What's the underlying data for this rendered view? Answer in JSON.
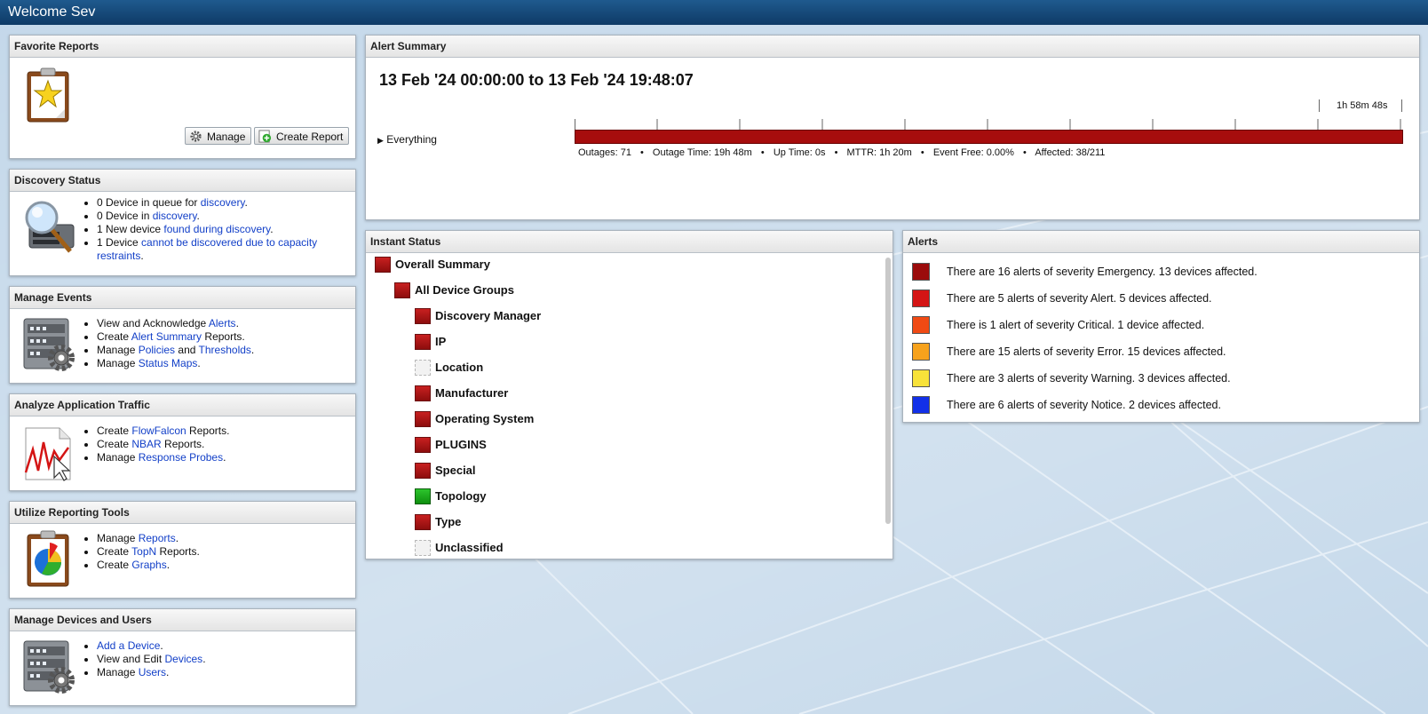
{
  "header": {
    "title": "Welcome Sev"
  },
  "favorite_reports": {
    "title": "Favorite Reports",
    "icon": "clipboard-star-icon",
    "manage_label": "Manage",
    "create_label": "Create Report"
  },
  "discovery_status": {
    "title": "Discovery Status",
    "icon": "magnifier-server-icon",
    "items": [
      {
        "pre": "0 Device in queue for ",
        "link": "discovery",
        "post": "."
      },
      {
        "pre": "0 Device in ",
        "link": "discovery",
        "post": "."
      },
      {
        "pre": "1 New device ",
        "link": "found during discovery",
        "post": "."
      },
      {
        "pre": "1 Device ",
        "link": "cannot be discovered due to capacity restraints",
        "post": "."
      }
    ]
  },
  "manage_events": {
    "title": "Manage Events",
    "icon": "server-gear-icon",
    "items": [
      {
        "pre": "View and Acknowledge ",
        "link": "Alerts",
        "post": "."
      },
      {
        "pre": "Create ",
        "link": "Alert Summary",
        "post": " Reports."
      },
      {
        "pre": "Manage ",
        "link": "Policies",
        "mid": " and ",
        "link2": "Thresholds",
        "post": "."
      },
      {
        "pre": "Manage ",
        "link": "Status Maps",
        "post": "."
      }
    ]
  },
  "analyze_traffic": {
    "title": "Analyze Application Traffic",
    "icon": "traffic-chart-icon",
    "items": [
      {
        "pre": "Create ",
        "link": "FlowFalcon",
        "post": " Reports."
      },
      {
        "pre": "Create ",
        "link": "NBAR",
        "post": " Reports."
      },
      {
        "pre": "Manage ",
        "link": "Response Probes",
        "post": "."
      }
    ]
  },
  "reporting_tools": {
    "title": "Utilize Reporting Tools",
    "icon": "clipboard-pie-icon",
    "items": [
      {
        "pre": "Manage ",
        "link": "Reports",
        "post": "."
      },
      {
        "pre": "Create ",
        "link": "TopN",
        "post": " Reports."
      },
      {
        "pre": "Create ",
        "link": "Graphs",
        "post": "."
      }
    ]
  },
  "devices_users": {
    "title": "Manage Devices and Users",
    "icon": "server-gear-icon",
    "items": [
      {
        "pre": "",
        "link": "Add a Device",
        "post": "."
      },
      {
        "pre": "View and Edit ",
        "link": "Devices",
        "post": "."
      },
      {
        "pre": "Manage ",
        "link": "Users",
        "post": "."
      }
    ]
  },
  "alert_summary": {
    "title": "Alert Summary",
    "range": "13 Feb '24 00:00:00 to 13 Feb '24 19:48:07",
    "duration": "1h 58m 48s",
    "group": "Everything",
    "bar_color": "#a60d0d",
    "stats": [
      "Outages: 71",
      "Outage Time: 19h 48m",
      "Up Time: 0s",
      "MTTR: 1h 20m",
      "Event Free: 0.00%",
      "Affected: 38/211"
    ],
    "separator": "•"
  },
  "instant_status": {
    "title": "Instant Status",
    "rows": [
      {
        "label": "Overall Summary",
        "status": "red",
        "level": 0
      },
      {
        "label": "All Device Groups",
        "status": "red",
        "level": 1
      },
      {
        "label": "Discovery Manager",
        "status": "red",
        "level": 2
      },
      {
        "label": "IP",
        "status": "red",
        "level": 2
      },
      {
        "label": "Location",
        "status": "blank",
        "level": 2
      },
      {
        "label": "Manufacturer",
        "status": "red",
        "level": 2
      },
      {
        "label": "Operating System",
        "status": "red",
        "level": 2
      },
      {
        "label": "PLUGINS",
        "status": "red",
        "level": 2
      },
      {
        "label": "Special",
        "status": "red",
        "level": 2
      },
      {
        "label": "Topology",
        "status": "green",
        "level": 2
      },
      {
        "label": "Type",
        "status": "red",
        "level": 2
      },
      {
        "label": "Unclassified",
        "status": "blank",
        "level": 2
      }
    ]
  },
  "alerts": {
    "title": "Alerts",
    "rows": [
      {
        "text": "There are 16 alerts of severity Emergency. 13 devices affected.",
        "color": "#9b0b0b"
      },
      {
        "text": "There are 5 alerts of severity Alert. 5 devices affected.",
        "color": "#d41515"
      },
      {
        "text": "There is 1 alert of severity Critical. 1 device affected.",
        "color": "#f04a14"
      },
      {
        "text": "There are 15 alerts of severity Error. 15 devices affected.",
        "color": "#f7a21c"
      },
      {
        "text": "There are 3 alerts of severity Warning. 3 devices affected.",
        "color": "#f8e23a"
      },
      {
        "text": "There are 6 alerts of severity Notice. 2 devices affected.",
        "color": "#1230e8"
      }
    ]
  }
}
